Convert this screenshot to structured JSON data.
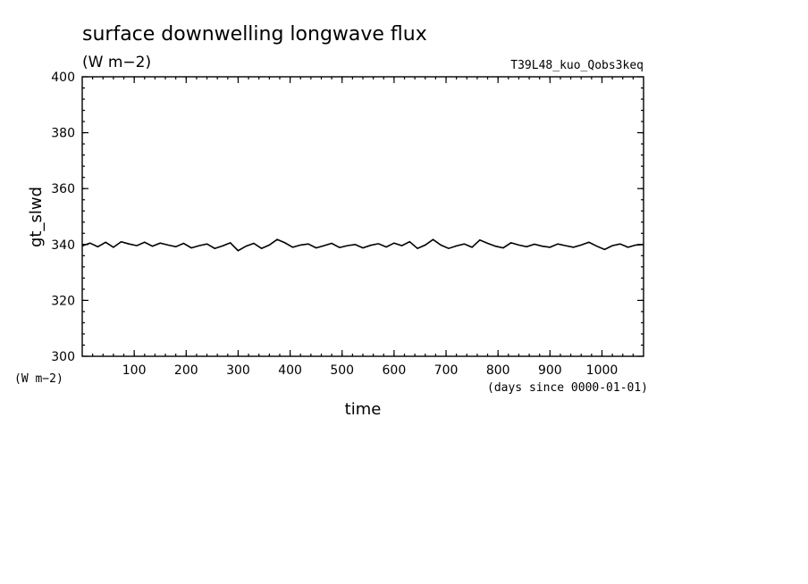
{
  "title": "surface downwelling longwave flux",
  "title_unit": "(W m−2)",
  "experiment": "T39L48_kuo_Qobs3keq",
  "chart_data": {
    "type": "line",
    "xlabel": "time",
    "x_unit": "(days since 0000-01-01)",
    "ylabel": "gt_slwd",
    "y_unit": "(W m−2)",
    "xlim": [
      0,
      1080
    ],
    "ylim": [
      300,
      400
    ],
    "x_ticks": [
      100,
      200,
      300,
      400,
      500,
      600,
      700,
      800,
      900,
      1000
    ],
    "y_ticks": [
      300,
      320,
      340,
      360,
      380,
      400
    ],
    "grid": false,
    "series": [
      {
        "x": [
          0,
          15,
          30,
          45,
          60,
          75,
          90,
          105,
          120,
          135,
          150,
          165,
          180,
          195,
          210,
          225,
          240,
          255,
          270,
          285,
          300,
          315,
          330,
          345,
          360,
          375,
          390,
          405,
          420,
          435,
          450,
          465,
          480,
          495,
          510,
          525,
          540,
          555,
          570,
          585,
          600,
          615,
          630,
          645,
          660,
          675,
          690,
          705,
          720,
          735,
          750,
          765,
          780,
          795,
          810,
          825,
          840,
          855,
          870,
          885,
          900,
          915,
          930,
          945,
          960,
          975,
          990,
          1005,
          1020,
          1035,
          1050,
          1065,
          1080
        ],
        "y": [
          339.5,
          340.5,
          339.2,
          340.8,
          339.0,
          341.0,
          340.2,
          339.6,
          340.8,
          339.4,
          340.5,
          339.8,
          339.2,
          340.4,
          338.8,
          339.6,
          340.2,
          338.6,
          339.5,
          340.6,
          337.8,
          339.4,
          340.4,
          338.6,
          339.8,
          341.8,
          340.6,
          339.0,
          339.8,
          340.2,
          338.8,
          339.6,
          340.4,
          338.9,
          339.6,
          340.0,
          338.8,
          339.7,
          340.3,
          339.1,
          340.5,
          339.6,
          341.0,
          338.6,
          339.8,
          341.8,
          339.8,
          338.6,
          339.5,
          340.2,
          339.0,
          341.6,
          340.4,
          339.4,
          338.8,
          340.6,
          339.8,
          339.2,
          340.1,
          339.4,
          339.0,
          340.2,
          339.6,
          339.0,
          339.8,
          340.8,
          339.4,
          338.2,
          339.6,
          340.2,
          339.0,
          339.8,
          340.0
        ]
      }
    ]
  }
}
